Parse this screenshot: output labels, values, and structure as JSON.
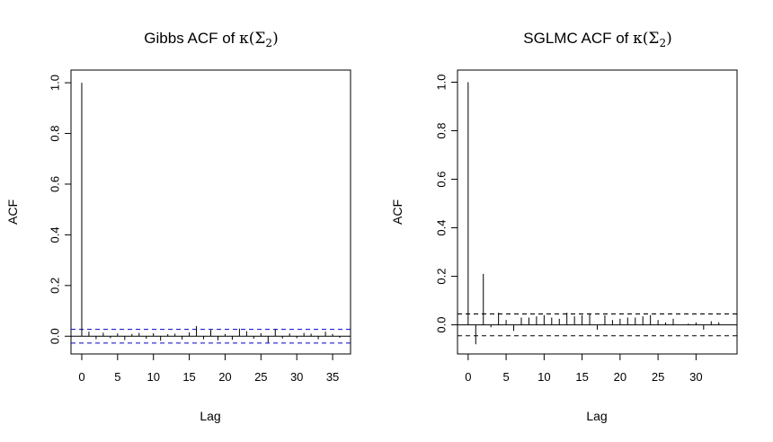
{
  "figure": {
    "colors": {
      "background": "#ffffff",
      "ink": "#000000",
      "ci_left": "#0000cc",
      "ci_right": "#000000"
    }
  },
  "chart_data": [
    {
      "type": "bar",
      "title": {
        "prefix": "Gibbs ACF of ",
        "kappa": "κ",
        "open": "(",
        "sigma": "Σ",
        "sub": "2",
        "close": ")"
      },
      "xlabel": "Lag",
      "ylabel": "ACF",
      "xlim": [
        -1.5,
        37.5
      ],
      "ylim": [
        -0.07,
        1.05
      ],
      "xticks": [
        0,
        5,
        10,
        15,
        20,
        25,
        30,
        35
      ],
      "yticks": [
        0.0,
        0.2,
        0.4,
        0.6,
        0.8,
        1.0
      ],
      "ytick_labels": [
        "0.0",
        "0.2",
        "0.4",
        "0.6",
        "0.8",
        "1.0"
      ],
      "conf_limit": 0.027,
      "conf_color": "#0000cc",
      "grid": false,
      "lags": [
        0,
        1,
        2,
        3,
        4,
        5,
        6,
        7,
        8,
        9,
        10,
        11,
        12,
        13,
        14,
        15,
        16,
        17,
        18,
        19,
        20,
        21,
        22,
        23,
        24,
        25,
        26,
        27,
        28,
        29,
        30,
        31,
        32,
        33,
        34,
        35,
        36
      ],
      "values": [
        1.0,
        0.018,
        -0.012,
        0.014,
        -0.008,
        0.011,
        -0.015,
        0.009,
        0.013,
        -0.01,
        0.012,
        -0.018,
        0.008,
        0.01,
        -0.013,
        0.015,
        0.04,
        -0.012,
        0.025,
        -0.016,
        0.009,
        -0.014,
        0.03,
        0.02,
        -0.01,
        0.012,
        -0.025,
        0.028,
        -0.009,
        0.011,
        -0.008,
        0.013,
        0.01,
        -0.012,
        0.018,
        0.009,
        -0.006
      ]
    },
    {
      "type": "bar",
      "title": {
        "prefix": "SGLMC ACF of ",
        "kappa": "κ",
        "open": "(",
        "sigma": "Σ",
        "sub": "2",
        "close": ")"
      },
      "xlabel": "Lag",
      "ylabel": "ACF",
      "xlim": [
        -1.4,
        35.4
      ],
      "ylim": [
        -0.12,
        1.05
      ],
      "xticks": [
        0,
        5,
        10,
        15,
        20,
        25,
        30
      ],
      "yticks": [
        0.0,
        0.2,
        0.4,
        0.6,
        0.8,
        1.0
      ],
      "ytick_labels": [
        "0.0",
        "0.2",
        "0.4",
        "0.6",
        "0.8",
        "1.0"
      ],
      "conf_limit": 0.045,
      "conf_color": "#000000",
      "grid": false,
      "lags": [
        0,
        1,
        2,
        3,
        4,
        5,
        6,
        7,
        8,
        9,
        10,
        11,
        12,
        13,
        14,
        15,
        16,
        17,
        18,
        19,
        20,
        21,
        22,
        23,
        24,
        25,
        26,
        27,
        28,
        29,
        30,
        31,
        32,
        33,
        34
      ],
      "values": [
        1.0,
        -0.08,
        0.21,
        -0.01,
        0.05,
        0.02,
        -0.025,
        0.03,
        0.03,
        0.035,
        0.04,
        0.03,
        0.025,
        0.05,
        0.035,
        0.04,
        0.045,
        -0.02,
        0.04,
        0.02,
        0.025,
        0.03,
        0.03,
        0.035,
        0.04,
        0.02,
        0.01,
        0.025,
        0.0,
        0.005,
        0.01,
        -0.02,
        0.015,
        0.01,
        0.0
      ]
    }
  ]
}
